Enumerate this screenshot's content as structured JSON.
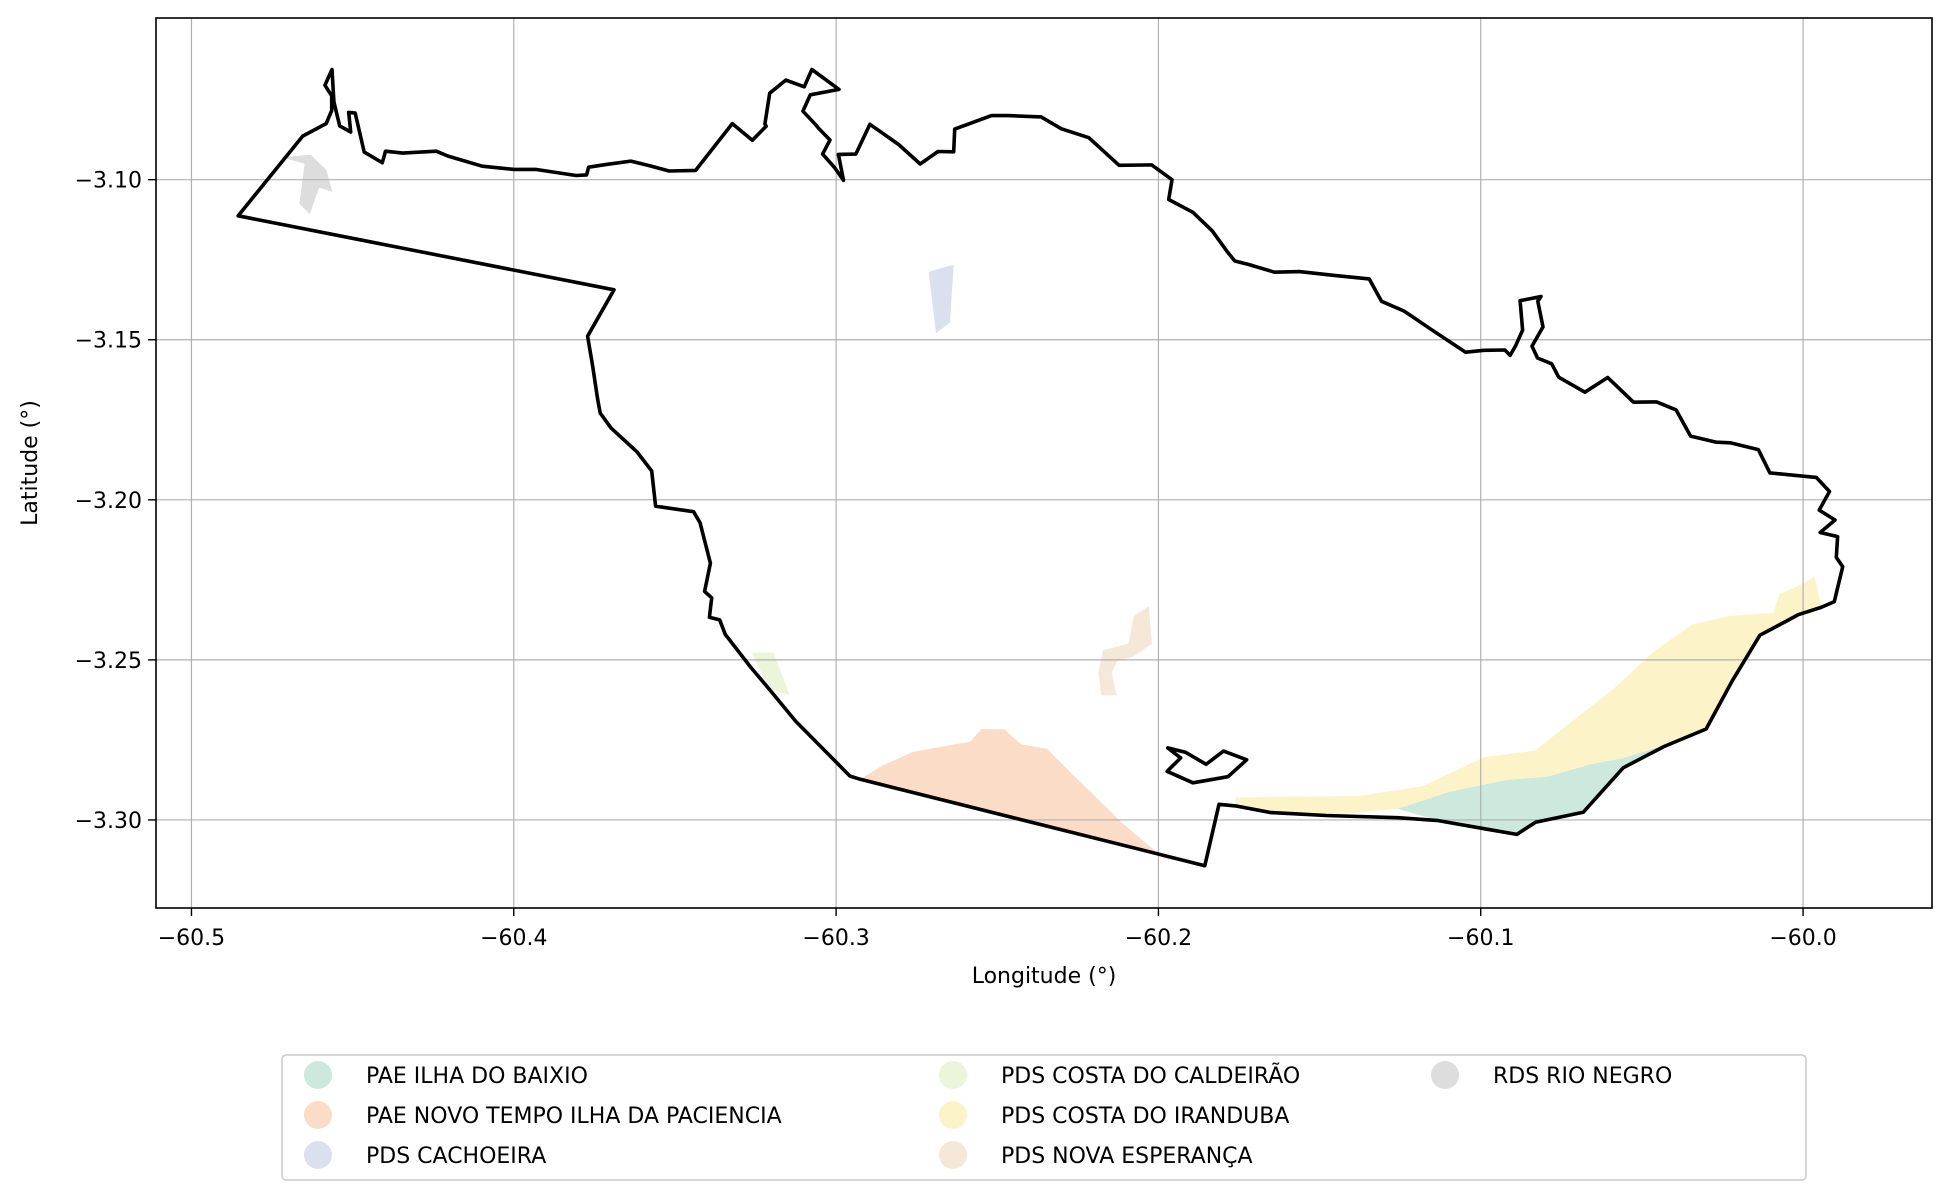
{
  "chart_data": {
    "type": "map",
    "xlabel": "Longitude (°)",
    "ylabel": "Latitude (°)",
    "xlim": [
      -60.511,
      -59.96
    ],
    "ylim": [
      -3.3275,
      -3.0495
    ],
    "x_ticks": [
      {
        "value": -60.5,
        "label": "−60.5"
      },
      {
        "value": -60.4,
        "label": "−60.4"
      },
      {
        "value": -60.3,
        "label": "−60.3"
      },
      {
        "value": -60.2,
        "label": "−60.2"
      },
      {
        "value": -60.1,
        "label": "−60.1"
      },
      {
        "value": -60.0,
        "label": "−60.0"
      }
    ],
    "y_ticks": [
      {
        "value": -3.1,
        "label": "−3.10"
      },
      {
        "value": -3.15,
        "label": "−3.15"
      },
      {
        "value": -3.2,
        "label": "−3.20"
      },
      {
        "value": -3.25,
        "label": "−3.25"
      },
      {
        "value": -3.3,
        "label": "−3.30"
      }
    ],
    "grid": true,
    "legend_position": "bottom-center",
    "legend": [
      {
        "name": "PAE ILHA DO BAIXIO",
        "color": "#cde8dc"
      },
      {
        "name": "PAE NOVO TEMPO ILHA DA PACIENCIA",
        "color": "#fbdcc6"
      },
      {
        "name": "PDS CACHOEIRA",
        "color": "#dbe0ef"
      },
      {
        "name": "PDS COSTA DO CALDEIRÃO",
        "color": "#eaf5da"
      },
      {
        "name": "PDS COSTA DO IRANDUBA",
        "color": "#fdf3c9"
      },
      {
        "name": "PDS NOVA ESPERANÇA",
        "color": "#f5e8d8"
      },
      {
        "name": "RDS RIO NEGRO",
        "color": "#dddddd"
      }
    ],
    "outline": {
      "color": "#000000",
      "coords": [
        [
          -60.4855,
          -3.1113
        ],
        [
          -60.4655,
          -3.0864
        ],
        [
          -60.4582,
          -3.0825
        ],
        [
          -60.4565,
          -3.0784
        ],
        [
          -60.4565,
          -3.0738
        ],
        [
          -60.4586,
          -3.0705
        ],
        [
          -60.4564,
          -3.0656
        ],
        [
          -60.4558,
          -3.0757
        ],
        [
          -60.454,
          -3.0832
        ],
        [
          -60.4506,
          -3.0851
        ],
        [
          -60.4512,
          -3.079
        ],
        [
          -60.4492,
          -3.0792
        ],
        [
          -60.4464,
          -3.0914
        ],
        [
          -60.4408,
          -3.0947
        ],
        [
          -60.4398,
          -3.0911
        ],
        [
          -60.4345,
          -3.0917
        ],
        [
          -60.424,
          -3.0911
        ],
        [
          -60.4205,
          -3.0926
        ],
        [
          -60.4098,
          -3.0958
        ],
        [
          -60.3999,
          -3.0968
        ],
        [
          -60.3932,
          -3.0968
        ],
        [
          -60.3807,
          -3.0987
        ],
        [
          -60.3774,
          -3.0985
        ],
        [
          -60.3768,
          -3.0961
        ],
        [
          -60.371,
          -3.0952
        ],
        [
          -60.3637,
          -3.0942
        ],
        [
          -60.358,
          -3.0956
        ],
        [
          -60.3518,
          -3.0973
        ],
        [
          -60.3436,
          -3.0971
        ],
        [
          -60.3322,
          -3.0825
        ],
        [
          -60.326,
          -3.0877
        ],
        [
          -60.3217,
          -3.0833
        ],
        [
          -60.3221,
          -3.0826
        ],
        [
          -60.3206,
          -3.073
        ],
        [
          -60.3156,
          -3.0689
        ],
        [
          -60.3099,
          -3.071
        ],
        [
          -60.3075,
          -3.0656
        ],
        [
          -60.2991,
          -3.0718
        ],
        [
          -60.308,
          -3.0735
        ],
        [
          -60.3103,
          -3.0786
        ],
        [
          -60.3062,
          -3.083
        ],
        [
          -60.3053,
          -3.0841
        ],
        [
          -60.3019,
          -3.0876
        ],
        [
          -60.3042,
          -3.092
        ],
        [
          -60.3005,
          -3.0962
        ],
        [
          -60.2977,
          -3.1002
        ],
        [
          -60.2993,
          -3.0921
        ],
        [
          -60.2939,
          -3.092
        ],
        [
          -60.2895,
          -3.0827
        ],
        [
          -60.2806,
          -3.089
        ],
        [
          -60.2739,
          -3.0951
        ],
        [
          -60.2684,
          -3.0912
        ],
        [
          -60.2635,
          -3.0913
        ],
        [
          -60.2632,
          -3.0842
        ],
        [
          -60.2518,
          -3.08
        ],
        [
          -60.2466,
          -3.08
        ],
        [
          -60.2364,
          -3.0804
        ],
        [
          -60.2301,
          -3.0841
        ],
        [
          -60.2216,
          -3.0869
        ],
        [
          -60.2122,
          -3.0955
        ],
        [
          -60.2021,
          -3.0954
        ],
        [
          -60.1958,
          -3.1
        ],
        [
          -60.1968,
          -3.1062
        ],
        [
          -60.1893,
          -3.1102
        ],
        [
          -60.1833,
          -3.116
        ],
        [
          -60.1788,
          -3.1223
        ],
        [
          -60.1763,
          -3.1254
        ],
        [
          -60.172,
          -3.1265
        ],
        [
          -60.164,
          -3.1289
        ],
        [
          -60.1563,
          -3.1287
        ],
        [
          -60.1454,
          -3.1299
        ],
        [
          -60.1346,
          -3.131
        ],
        [
          -60.1308,
          -3.138
        ],
        [
          -60.1239,
          -3.141
        ],
        [
          -60.1207,
          -3.1431
        ],
        [
          -60.1155,
          -3.1467
        ],
        [
          -60.1047,
          -3.1539
        ],
        [
          -60.099,
          -3.1533
        ],
        [
          -60.0925,
          -3.1532
        ],
        [
          -60.0909,
          -3.1549
        ],
        [
          -60.0892,
          -3.1519
        ],
        [
          -60.087,
          -3.147
        ],
        [
          -60.0878,
          -3.1378
        ],
        [
          -60.0813,
          -3.1365
        ],
        [
          -60.0823,
          -3.138
        ],
        [
          -60.0807,
          -3.146
        ],
        [
          -60.0841,
          -3.152
        ],
        [
          -60.0824,
          -3.1557
        ],
        [
          -60.078,
          -3.1575
        ],
        [
          -60.0758,
          -3.1617
        ],
        [
          -60.0677,
          -3.1664
        ],
        [
          -60.0606,
          -3.1618
        ],
        [
          -60.0526,
          -3.1695
        ],
        [
          -60.0454,
          -3.1694
        ],
        [
          -60.0394,
          -3.1719
        ],
        [
          -60.0349,
          -3.1801
        ],
        [
          -60.0269,
          -3.182
        ],
        [
          -60.0226,
          -3.1822
        ],
        [
          -60.0139,
          -3.1843
        ],
        [
          -60.0103,
          -3.1916
        ],
        [
          -59.9959,
          -3.193
        ],
        [
          -59.9918,
          -3.1974
        ],
        [
          -59.995,
          -3.2032
        ],
        [
          -59.9901,
          -3.2063
        ],
        [
          -59.9947,
          -3.2102
        ],
        [
          -59.9893,
          -3.2115
        ],
        [
          -59.9897,
          -3.218
        ],
        [
          -59.9877,
          -3.2209
        ],
        [
          -59.9903,
          -3.2318
        ],
        [
          -59.9944,
          -3.2336
        ],
        [
          -60.0015,
          -3.2359
        ],
        [
          -60.0048,
          -3.2377
        ],
        [
          -60.0134,
          -3.2423
        ],
        [
          -60.0219,
          -3.2564
        ],
        [
          -60.0301,
          -3.2716
        ],
        [
          -60.0432,
          -3.2771
        ],
        [
          -60.0558,
          -3.2837
        ],
        [
          -60.0682,
          -3.2976
        ],
        [
          -60.083,
          -3.3007
        ],
        [
          -60.0888,
          -3.3045
        ],
        [
          -60.0981,
          -3.3029
        ],
        [
          -60.1132,
          -3.3002
        ],
        [
          -60.1258,
          -3.2993
        ],
        [
          -60.148,
          -3.2986
        ],
        [
          -60.1591,
          -3.298
        ],
        [
          -60.1651,
          -3.2977
        ],
        [
          -60.1761,
          -3.2956
        ],
        [
          -60.1812,
          -3.2951
        ],
        [
          -60.1856,
          -3.3143
        ],
        [
          -60.2925,
          -3.2873
        ],
        [
          -60.2957,
          -3.2863
        ],
        [
          -60.3125,
          -3.2692
        ],
        [
          -60.3208,
          -3.2591
        ],
        [
          -60.3264,
          -3.2524
        ],
        [
          -60.3344,
          -3.242
        ],
        [
          -60.3361,
          -3.2375
        ],
        [
          -60.3393,
          -3.2367
        ],
        [
          -60.3386,
          -3.2306
        ],
        [
          -60.3408,
          -3.2286
        ],
        [
          -60.339,
          -3.2198
        ],
        [
          -60.3422,
          -3.2072
        ],
        [
          -60.3442,
          -3.2037
        ],
        [
          -60.356,
          -3.202
        ],
        [
          -60.3572,
          -3.191
        ],
        [
          -60.3617,
          -3.1851
        ],
        [
          -60.3698,
          -3.1776
        ],
        [
          -60.3732,
          -3.1729
        ],
        [
          -60.374,
          -3.1685
        ],
        [
          -60.3755,
          -3.1583
        ],
        [
          -60.3771,
          -3.1489
        ],
        [
          -60.3689,
          -3.1344
        ],
        [
          -60.4855,
          -3.1113
        ]
      ]
    },
    "island": {
      "color": "#000000",
      "coords": [
        [
          -60.1971,
          -3.2775
        ],
        [
          -60.1915,
          -3.2789
        ],
        [
          -60.1852,
          -3.2826
        ],
        [
          -60.1798,
          -3.2785
        ],
        [
          -60.1726,
          -3.2812
        ],
        [
          -60.1784,
          -3.2865
        ],
        [
          -60.1893,
          -3.2884
        ],
        [
          -60.1973,
          -3.2848
        ],
        [
          -60.1931,
          -3.2806
        ],
        [
          -60.1971,
          -3.2775
        ]
      ]
    },
    "areas": [
      {
        "name": "PAE ILHA DO BAIXIO",
        "color": "#cde8dc",
        "coords": [
          [
            -60.1258,
            -3.2965
          ],
          [
            -60.1098,
            -3.2912
          ],
          [
            -60.092,
            -3.2875
          ],
          [
            -60.0794,
            -3.2865
          ],
          [
            -60.0655,
            -3.2825
          ],
          [
            -60.056,
            -3.2807
          ],
          [
            -60.0443,
            -3.2771
          ],
          [
            -60.0558,
            -3.2837
          ],
          [
            -60.0682,
            -3.2976
          ],
          [
            -60.083,
            -3.3007
          ],
          [
            -60.0888,
            -3.3045
          ],
          [
            -60.0981,
            -3.3029
          ],
          [
            -60.1132,
            -3.3002
          ],
          [
            -60.1258,
            -3.2965
          ]
        ]
      },
      {
        "name": "PAE NOVO TEMPO ILHA DA PACIENCIA",
        "color": "#fbdcc6",
        "coords": [
          [
            -60.2925,
            -3.2873
          ],
          [
            -60.2856,
            -3.283
          ],
          [
            -60.276,
            -3.2787
          ],
          [
            -60.2585,
            -3.2756
          ],
          [
            -60.2548,
            -3.2716
          ],
          [
            -60.2478,
            -3.2717
          ],
          [
            -60.2426,
            -3.2764
          ],
          [
            -60.2346,
            -3.2777
          ],
          [
            -60.2269,
            -3.2855
          ],
          [
            -60.2115,
            -3.3007
          ],
          [
            -60.1983,
            -3.312
          ],
          [
            -60.1856,
            -3.3143
          ],
          [
            -60.2925,
            -3.2873
          ]
        ]
      },
      {
        "name": "PDS CACHOEIRA",
        "color": "#dbe0ef",
        "coords": [
          [
            -60.2713,
            -3.1288
          ],
          [
            -60.2635,
            -3.1265
          ],
          [
            -60.2647,
            -3.1447
          ],
          [
            -60.269,
            -3.148
          ],
          [
            -60.2713,
            -3.1288
          ]
        ]
      },
      {
        "name": "PDS COSTA DO CALDEIRÃO",
        "color": "#eaf5da",
        "coords": [
          [
            -60.3262,
            -3.2477
          ],
          [
            -60.3194,
            -3.2477
          ],
          [
            -60.3144,
            -3.261
          ],
          [
            -60.3208,
            -3.2591
          ],
          [
            -60.3262,
            -3.2477
          ]
        ]
      },
      {
        "name": "PDS COSTA DO IRANDUBA",
        "color": "#fdf3c9",
        "coords": [
          [
            -60.1761,
            -3.293
          ],
          [
            -60.1663,
            -3.2928
          ],
          [
            -60.1379,
            -3.2925
          ],
          [
            -60.118,
            -3.2895
          ],
          [
            -60.0988,
            -3.2803
          ],
          [
            -60.0832,
            -3.2784
          ],
          [
            -60.0702,
            -3.268
          ],
          [
            -60.0586,
            -3.2589
          ],
          [
            -60.0468,
            -3.2478
          ],
          [
            -60.0345,
            -3.239
          ],
          [
            -60.0226,
            -3.2362
          ],
          [
            -60.0094,
            -3.2354
          ],
          [
            -60.0072,
            -3.2294
          ],
          [
            -60.0013,
            -3.2268
          ],
          [
            -59.9964,
            -3.224
          ],
          [
            -59.9944,
            -3.2336
          ],
          [
            -60.0015,
            -3.2359
          ],
          [
            -60.0134,
            -3.2423
          ],
          [
            -60.0219,
            -3.2564
          ],
          [
            -60.0301,
            -3.2716
          ],
          [
            -60.0443,
            -3.2771
          ],
          [
            -60.056,
            -3.2807
          ],
          [
            -60.0655,
            -3.2825
          ],
          [
            -60.0794,
            -3.2865
          ],
          [
            -60.092,
            -3.2875
          ],
          [
            -60.1098,
            -3.2912
          ],
          [
            -60.1258,
            -3.2965
          ],
          [
            -60.148,
            -3.2986
          ],
          [
            -60.1591,
            -3.298
          ],
          [
            -60.1761,
            -3.2956
          ],
          [
            -60.1761,
            -3.293
          ]
        ]
      },
      {
        "name": "PDS NOVA ESPERANÇA",
        "color": "#f5e8d8",
        "coords": [
          [
            -60.203,
            -3.2332
          ],
          [
            -60.202,
            -3.245
          ],
          [
            -60.2079,
            -3.249
          ],
          [
            -60.2128,
            -3.2504
          ],
          [
            -60.2145,
            -3.2541
          ],
          [
            -60.2129,
            -3.2611
          ],
          [
            -60.2178,
            -3.2611
          ],
          [
            -60.2186,
            -3.254
          ],
          [
            -60.2172,
            -3.247
          ],
          [
            -60.2093,
            -3.2449
          ],
          [
            -60.2076,
            -3.2363
          ],
          [
            -60.203,
            -3.2332
          ]
        ]
      },
      {
        "name": "RDS RIO NEGRO",
        "color": "#dddddd",
        "coords": [
          [
            -60.472,
            -3.093
          ],
          [
            -60.4649,
            -3.095
          ],
          [
            -60.4665,
            -3.1075
          ],
          [
            -60.4633,
            -3.1108
          ],
          [
            -60.4604,
            -3.1025
          ],
          [
            -60.4563,
            -3.1038
          ],
          [
            -60.4581,
            -3.097
          ],
          [
            -60.463,
            -3.0922
          ],
          [
            -60.472,
            -3.093
          ]
        ]
      }
    ]
  }
}
